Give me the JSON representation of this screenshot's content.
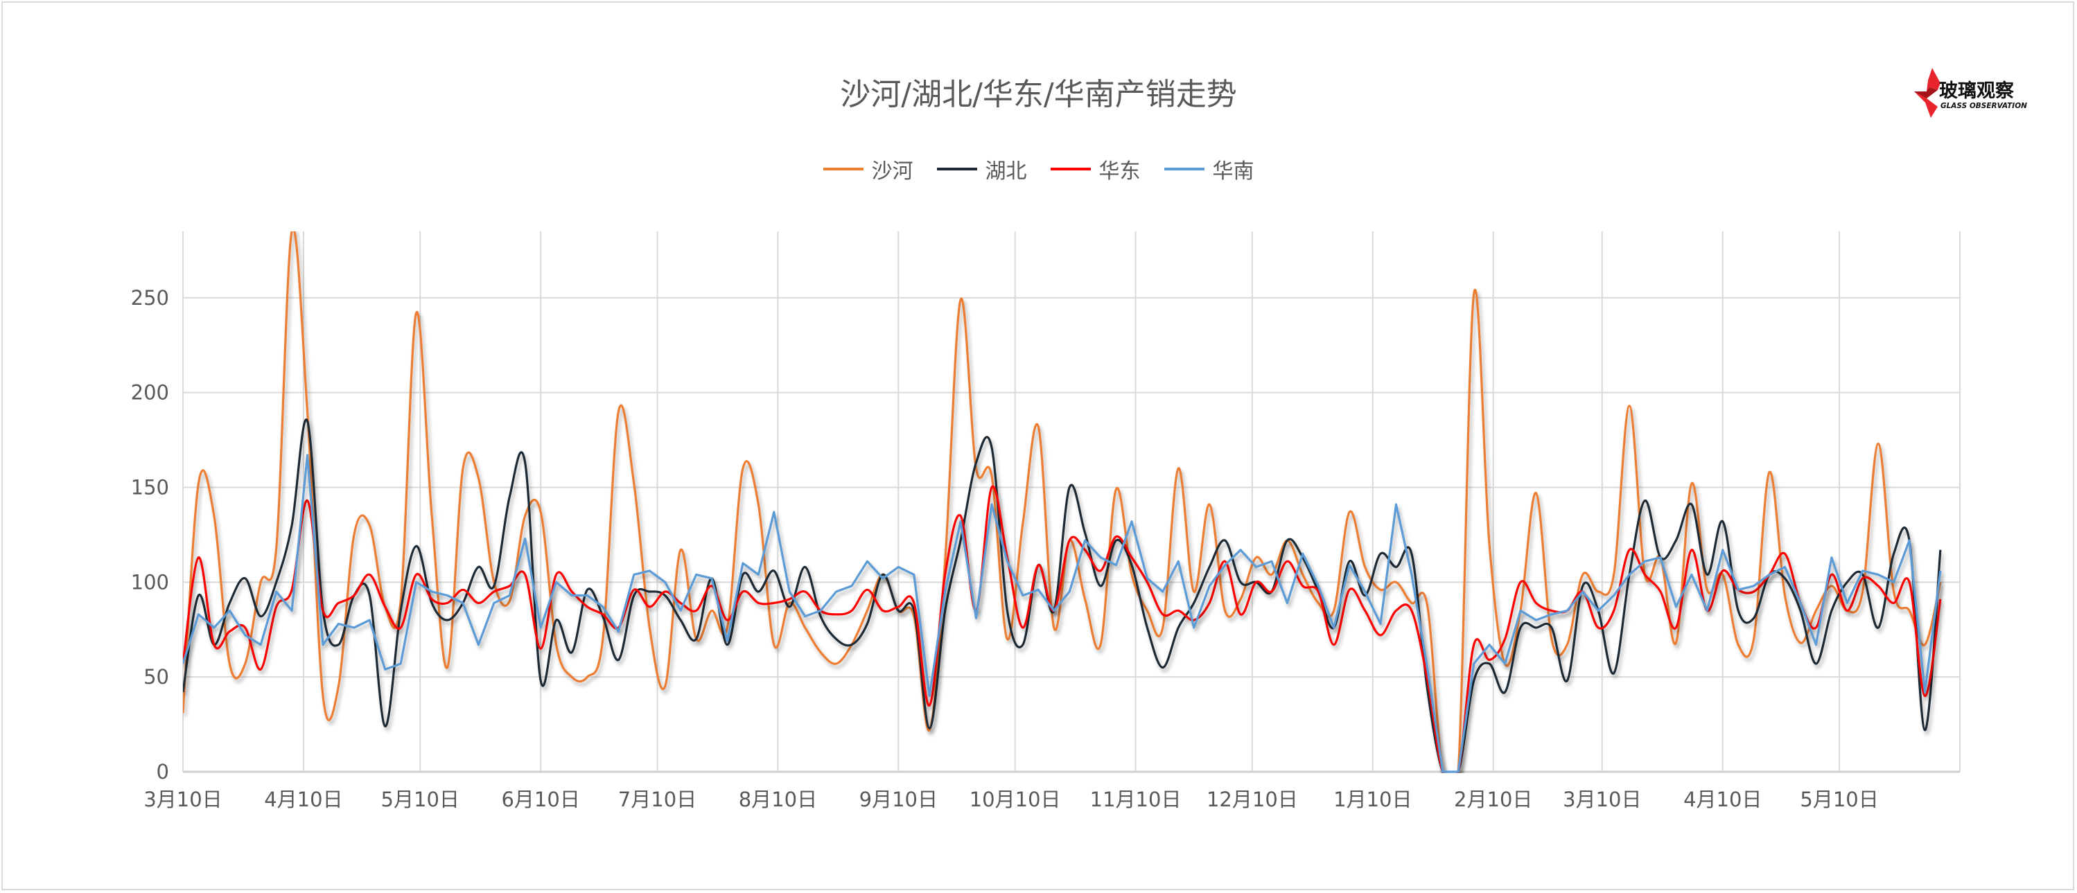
{
  "title": "沙河/湖北/华东/华南产销走势",
  "logo": {
    "cn": "玻璃观察",
    "en": "GLASS OBSERVATION",
    "color": "#E8242C"
  },
  "chart_data": {
    "type": "line",
    "title": "沙河/湖北/华东/华南产销走势",
    "xlabel": "",
    "ylabel": "",
    "ylim": [
      0,
      285
    ],
    "yticks": [
      0,
      50,
      100,
      150,
      200,
      250
    ],
    "xticks": [
      "3月10日",
      "4月10日",
      "5月10日",
      "6月10日",
      "7月10日",
      "8月10日",
      "9月10日",
      "10月10日",
      "11月10日",
      "12月10日",
      "1月10日",
      "2月10日",
      "3月10日",
      "4月10日",
      "5月10日"
    ],
    "grid": true,
    "legend_position": "top",
    "x": [
      "3月10日",
      "3月14日",
      "3月18日",
      "3月22日",
      "3月26日",
      "3月30日",
      "4月3日",
      "4月7日",
      "4月11日",
      "4月15日",
      "4月19日",
      "4月23日",
      "4月27日",
      "5月1日",
      "5月5日",
      "5月9日",
      "5月13日",
      "5月17日",
      "5月21日",
      "5月25日",
      "5月29日",
      "6月2日",
      "6月6日",
      "6月10日",
      "6月14日",
      "6月18日",
      "6月22日",
      "6月26日",
      "6月30日",
      "7月4日",
      "7月8日",
      "7月12日",
      "7月16日",
      "7月20日",
      "7月24日",
      "7月28日",
      "8月1日",
      "8月5日",
      "8月9日",
      "8月13日",
      "8月17日",
      "8月21日",
      "8月25日",
      "8月29日",
      "9月2日",
      "9月6日",
      "9月10日",
      "9月14日",
      "9月18日",
      "9月22日",
      "9月26日",
      "9月30日",
      "10月4日",
      "10月8日",
      "10月12日",
      "10月16日",
      "10月20日",
      "10月24日",
      "10月28日",
      "11月1日",
      "11月5日",
      "11月9日",
      "11月13日",
      "11月17日",
      "11月21日",
      "11月25日",
      "11月29日",
      "12月3日",
      "12月7日",
      "12月11日",
      "12月15日",
      "12月19日",
      "12月23日",
      "12月27日",
      "12月31日",
      "1月4日",
      "1月8日",
      "1月12日",
      "1月16日",
      "1月20日",
      "1月24日",
      "1月28日",
      "2月1日",
      "2月5日",
      "2月9日",
      "2月13日",
      "2月17日",
      "2月21日",
      "2月25日",
      "3月1日",
      "3月5日",
      "3月9日",
      "3月13日",
      "3月17日",
      "3月21日",
      "3月25日",
      "3月29日",
      "4月2日",
      "4月6日",
      "4月10日",
      "4月14日",
      "4月18日",
      "4月22日",
      "4月26日",
      "4月30日",
      "5月4日",
      "5月8日",
      "5月12日",
      "5月16日",
      "5月20日",
      "5月24日",
      "5月28日",
      "6月1日",
      "6月5日"
    ],
    "series": [
      {
        "name": "沙河",
        "color": "#ED7D31",
        "values": [
          31,
          152,
          135,
          57,
          57,
          100,
          118,
          285,
          190,
          40,
          45,
          125,
          130,
          87,
          90,
          242,
          135,
          55,
          160,
          155,
          100,
          90,
          135,
          137,
          67,
          50,
          50,
          70,
          190,
          152,
          76,
          45,
          117,
          70,
          85,
          76,
          160,
          141,
          67,
          89,
          76,
          63,
          57,
          67,
          85,
          104,
          85,
          82,
          22,
          111,
          249,
          160,
          156,
          70,
          131,
          182,
          76,
          122,
          91,
          67,
          149,
          104,
          85,
          76,
          160,
          95,
          141,
          85,
          91,
          113,
          104,
          122,
          104,
          89,
          85,
          137,
          108,
          96,
          100,
          89,
          88,
          0,
          0,
          252,
          120,
          57,
          85,
          147,
          70,
          67,
          104,
          95,
          104,
          193,
          104,
          113,
          68,
          152,
          96,
          104,
          67,
          70,
          158,
          93,
          68,
          85,
          98,
          85,
          95,
          173,
          95,
          85,
          67,
          100
        ]
      },
      {
        "name": "湖北",
        "color": "#1F2A36",
        "values": [
          42,
          93,
          67,
          89,
          102,
          82,
          100,
          130,
          185,
          85,
          67,
          93,
          93,
          24,
          85,
          119,
          89,
          80,
          89,
          108,
          98,
          145,
          163,
          48,
          80,
          63,
          96,
          82,
          59,
          93,
          95,
          93,
          80,
          70,
          102,
          67,
          104,
          95,
          106,
          87,
          108,
          82,
          70,
          67,
          78,
          104,
          85,
          85,
          23,
          85,
          122,
          163,
          171,
          85,
          67,
          109,
          85,
          150,
          126,
          98,
          122,
          109,
          76,
          55,
          76,
          89,
          108,
          122,
          100,
          100,
          95,
          122,
          113,
          95,
          76,
          111,
          93,
          115,
          108,
          115,
          44,
          0,
          0,
          48,
          57,
          42,
          76,
          76,
          76,
          48,
          98,
          85,
          52,
          104,
          143,
          113,
          122,
          141,
          104,
          132,
          85,
          81,
          104,
          102,
          85,
          57,
          85,
          100,
          104,
          76,
          115,
          122,
          22,
          117
        ]
      },
      {
        "name": "华东",
        "color": "#FF0000",
        "values": [
          57,
          113,
          67,
          74,
          76,
          54,
          87,
          96,
          143,
          85,
          89,
          93,
          104,
          87,
          76,
          104,
          91,
          89,
          96,
          89,
          95,
          98,
          104,
          65,
          104,
          95,
          87,
          83,
          76,
          96,
          87,
          95,
          89,
          85,
          98,
          80,
          95,
          89,
          89,
          91,
          95,
          85,
          83,
          85,
          96,
          85,
          87,
          89,
          35,
          104,
          135,
          85,
          150,
          113,
          76,
          109,
          85,
          122,
          117,
          106,
          124,
          113,
          100,
          83,
          85,
          80,
          89,
          111,
          83,
          100,
          95,
          111,
          98,
          95,
          67,
          96,
          85,
          72,
          85,
          85,
          49,
          0,
          0,
          67,
          59,
          70,
          100,
          89,
          85,
          85,
          95,
          76,
          85,
          117,
          104,
          95,
          76,
          117,
          85,
          106,
          96,
          95,
          104,
          115,
          89,
          76,
          104,
          85,
          102,
          98,
          89,
          100,
          40,
          91
        ]
      },
      {
        "name": "华南",
        "color": "#5B9BD5",
        "values": [
          57,
          83,
          76,
          85,
          72,
          67,
          95,
          85,
          167,
          67,
          78,
          76,
          80,
          54,
          57,
          100,
          95,
          93,
          89,
          67,
          89,
          93,
          123,
          76,
          100,
          93,
          93,
          87,
          74,
          104,
          106,
          100,
          85,
          104,
          102,
          69,
          110,
          104,
          137,
          95,
          82,
          85,
          95,
          98,
          111,
          102,
          108,
          104,
          40,
          95,
          132,
          81,
          141,
          111,
          93,
          96,
          85,
          95,
          122,
          113,
          109,
          132,
          102,
          95,
          111,
          76,
          98,
          109,
          117,
          108,
          111,
          89,
          115,
          98,
          76,
          109,
          95,
          78,
          141,
          104,
          55,
          0,
          0,
          57,
          67,
          57,
          85,
          80,
          83,
          85,
          95,
          85,
          93,
          104,
          111,
          113,
          87,
          104,
          85,
          117,
          96,
          98,
          104,
          108,
          89,
          67,
          113,
          89,
          106,
          104,
          100,
          122,
          42,
          106
        ]
      }
    ]
  }
}
